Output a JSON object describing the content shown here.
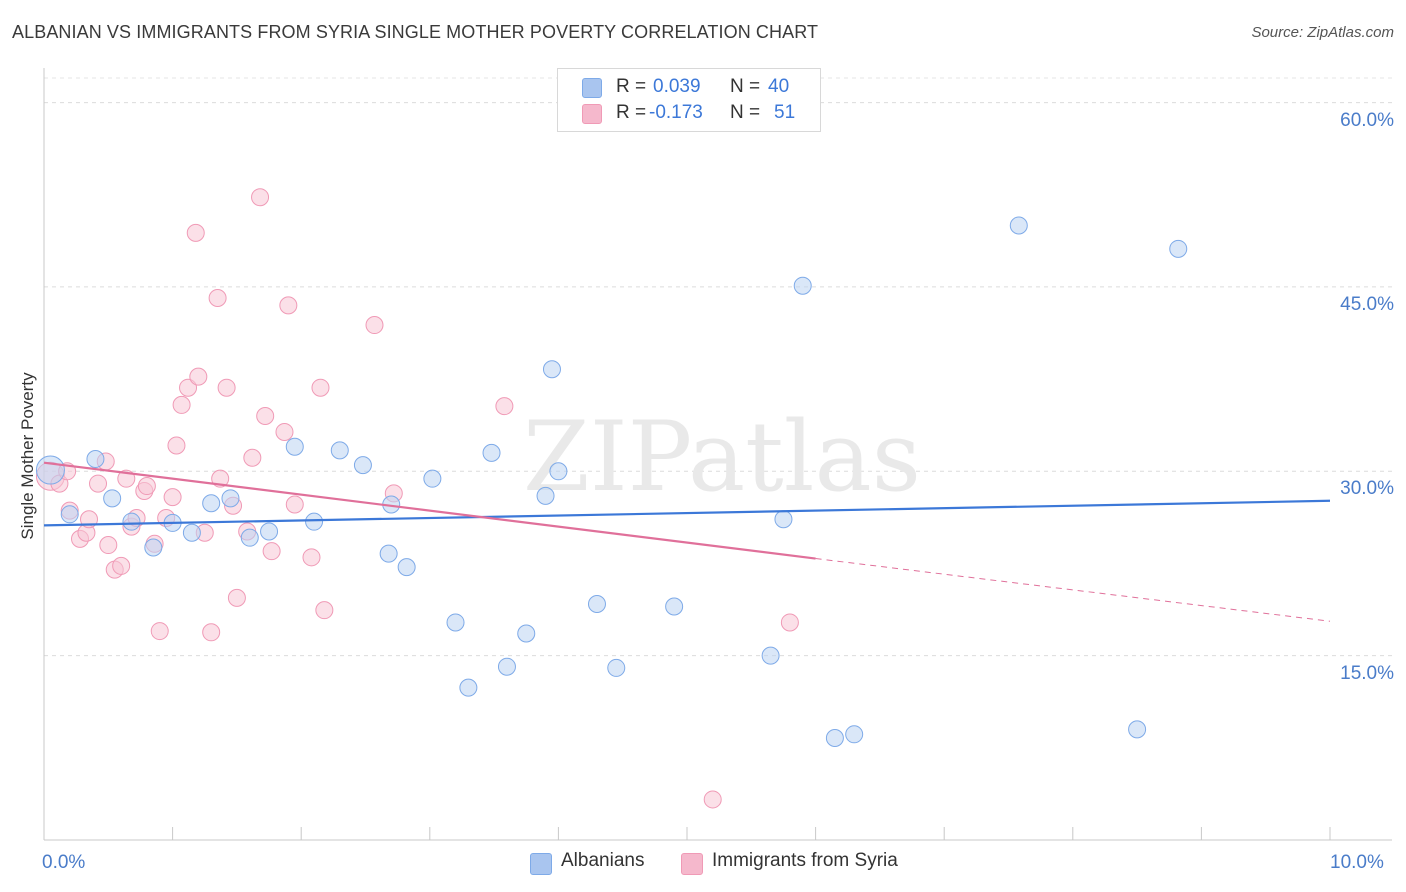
{
  "title": "ALBANIAN VS IMMIGRANTS FROM SYRIA SINGLE MOTHER POVERTY CORRELATION CHART",
  "source": "Source: ZipAtlas.com",
  "watermark": "ZIPatlas",
  "legend_top": {
    "rows": [
      {
        "r_label": "R =",
        "r_value": "0.039",
        "n_label": "N =",
        "n_value": "40",
        "color": "#a9c5ef"
      },
      {
        "r_label": "R =",
        "r_value": "-0.173",
        "n_label": "N =",
        "n_value": "51",
        "color": "#f5b8cc"
      }
    ]
  },
  "legend_bottom": [
    {
      "label": "Albanians",
      "color": "#a9c5ef"
    },
    {
      "label": "Immigrants from Syria",
      "color": "#f5b8cc"
    }
  ],
  "chart_data": {
    "type": "scatter",
    "xlabel": "",
    "ylabel": "Single Mother Poverty",
    "xlim": [
      0,
      10
    ],
    "ylim": [
      0,
      62
    ],
    "x_tick_labels": [
      {
        "value": 0,
        "label": "0.0%"
      },
      {
        "value": 10,
        "label": "10.0%"
      }
    ],
    "y_tick_labels": [
      {
        "value": 15,
        "label": "15.0%"
      },
      {
        "value": 30,
        "label": "30.0%"
      },
      {
        "value": 45,
        "label": "45.0%"
      },
      {
        "value": 60,
        "label": "60.0%"
      }
    ],
    "grid": "horizontal-dashed",
    "series": [
      {
        "name": "Albanians",
        "color": "#7eaae8",
        "trend": {
          "x": [
            0,
            10
          ],
          "y": [
            25.6,
            27.6
          ],
          "color": "#3c78d8"
        },
        "points": [
          {
            "x": 0.05,
            "y": 30.1,
            "big": true
          },
          {
            "x": 0.2,
            "y": 26.5
          },
          {
            "x": 0.4,
            "y": 31.0
          },
          {
            "x": 0.53,
            "y": 27.8
          },
          {
            "x": 0.68,
            "y": 25.9
          },
          {
            "x": 0.85,
            "y": 23.8
          },
          {
            "x": 1.0,
            "y": 25.8
          },
          {
            "x": 1.15,
            "y": 25.0
          },
          {
            "x": 1.3,
            "y": 27.4
          },
          {
            "x": 1.45,
            "y": 27.8
          },
          {
            "x": 1.6,
            "y": 24.6
          },
          {
            "x": 1.75,
            "y": 25.1
          },
          {
            "x": 1.95,
            "y": 32.0
          },
          {
            "x": 2.1,
            "y": 25.9
          },
          {
            "x": 2.3,
            "y": 31.7
          },
          {
            "x": 2.48,
            "y": 30.5
          },
          {
            "x": 2.68,
            "y": 23.3
          },
          {
            "x": 2.7,
            "y": 27.3
          },
          {
            "x": 2.82,
            "y": 22.2
          },
          {
            "x": 3.02,
            "y": 29.4
          },
          {
            "x": 3.2,
            "y": 17.7
          },
          {
            "x": 3.3,
            "y": 12.4
          },
          {
            "x": 3.48,
            "y": 31.5
          },
          {
            "x": 3.6,
            "y": 14.1
          },
          {
            "x": 3.75,
            "y": 16.8
          },
          {
            "x": 3.9,
            "y": 28.0
          },
          {
            "x": 3.95,
            "y": 38.3
          },
          {
            "x": 4.0,
            "y": 30.0
          },
          {
            "x": 4.3,
            "y": 19.2
          },
          {
            "x": 4.45,
            "y": 14.0
          },
          {
            "x": 4.9,
            "y": 19.0
          },
          {
            "x": 5.65,
            "y": 15.0
          },
          {
            "x": 5.75,
            "y": 26.1
          },
          {
            "x": 5.9,
            "y": 45.1
          },
          {
            "x": 6.15,
            "y": 8.3
          },
          {
            "x": 6.3,
            "y": 8.6
          },
          {
            "x": 7.58,
            "y": 50.0
          },
          {
            "x": 8.82,
            "y": 48.1
          },
          {
            "x": 8.5,
            "y": 9.0
          }
        ]
      },
      {
        "name": "Immigrants from Syria",
        "color": "#f09ab6",
        "trend": {
          "x": [
            0,
            6
          ],
          "y": [
            30.7,
            22.9
          ],
          "dash_to": [
            10,
            17.8
          ],
          "color": "#e0709a"
        },
        "points": [
          {
            "x": 0.05,
            "y": 29.6,
            "big": true
          },
          {
            "x": 0.12,
            "y": 29.0
          },
          {
            "x": 0.18,
            "y": 30.0
          },
          {
            "x": 0.2,
            "y": 26.8
          },
          {
            "x": 0.28,
            "y": 24.5
          },
          {
            "x": 0.33,
            "y": 25.0
          },
          {
            "x": 0.35,
            "y": 26.1
          },
          {
            "x": 0.42,
            "y": 29.0
          },
          {
            "x": 0.48,
            "y": 30.8
          },
          {
            "x": 0.5,
            "y": 24.0
          },
          {
            "x": 0.55,
            "y": 22.0
          },
          {
            "x": 0.6,
            "y": 22.3
          },
          {
            "x": 0.64,
            "y": 29.4
          },
          {
            "x": 0.68,
            "y": 25.5
          },
          {
            "x": 0.72,
            "y": 26.2
          },
          {
            "x": 0.78,
            "y": 28.4
          },
          {
            "x": 0.8,
            "y": 28.8
          },
          {
            "x": 0.86,
            "y": 24.1
          },
          {
            "x": 0.9,
            "y": 17.0
          },
          {
            "x": 0.95,
            "y": 26.2
          },
          {
            "x": 1.0,
            "y": 27.9
          },
          {
            "x": 1.03,
            "y": 32.1
          },
          {
            "x": 1.07,
            "y": 35.4
          },
          {
            "x": 1.12,
            "y": 36.8
          },
          {
            "x": 1.18,
            "y": 49.4
          },
          {
            "x": 1.2,
            "y": 37.7
          },
          {
            "x": 1.25,
            "y": 25.0
          },
          {
            "x": 1.3,
            "y": 16.9
          },
          {
            "x": 1.35,
            "y": 44.1
          },
          {
            "x": 1.37,
            "y": 29.4
          },
          {
            "x": 1.42,
            "y": 36.8
          },
          {
            "x": 1.47,
            "y": 27.2
          },
          {
            "x": 1.5,
            "y": 19.7
          },
          {
            "x": 1.58,
            "y": 25.1
          },
          {
            "x": 1.62,
            "y": 31.1
          },
          {
            "x": 1.68,
            "y": 52.3
          },
          {
            "x": 1.72,
            "y": 34.5
          },
          {
            "x": 1.77,
            "y": 23.5
          },
          {
            "x": 1.87,
            "y": 33.2
          },
          {
            "x": 1.9,
            "y": 43.5
          },
          {
            "x": 1.95,
            "y": 27.3
          },
          {
            "x": 2.08,
            "y": 23.0
          },
          {
            "x": 2.15,
            "y": 36.8
          },
          {
            "x": 2.18,
            "y": 18.7
          },
          {
            "x": 2.57,
            "y": 41.9
          },
          {
            "x": 2.72,
            "y": 28.2
          },
          {
            "x": 3.58,
            "y": 35.3
          },
          {
            "x": 5.2,
            "y": 3.3
          },
          {
            "x": 5.8,
            "y": 17.7
          }
        ]
      }
    ]
  }
}
